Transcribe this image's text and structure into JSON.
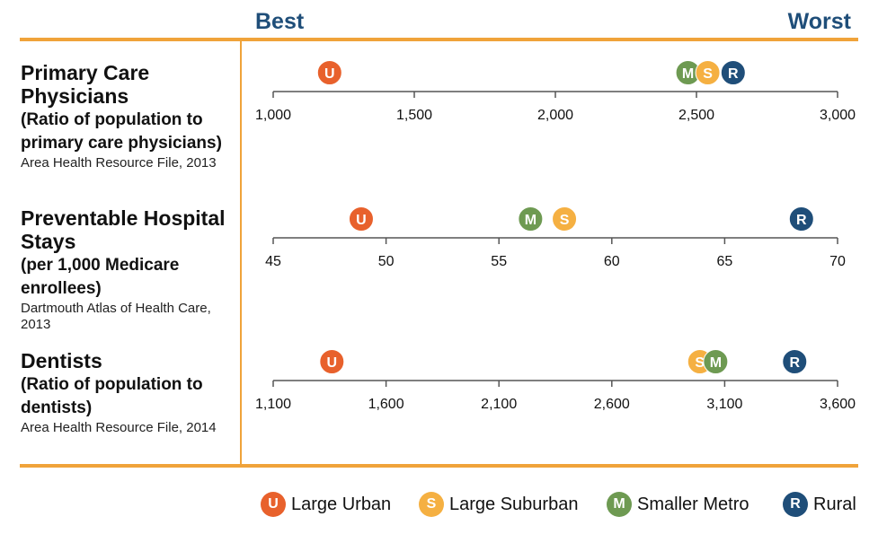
{
  "header": {
    "best": "Best",
    "worst": "Worst"
  },
  "colors": {
    "accent": "#f0a33a",
    "header_text": "#1f4e79",
    "U": "#e8612c",
    "S": "#f5b042",
    "M": "#6e9a52",
    "R": "#1f4e79"
  },
  "metrics": [
    {
      "title": "Primary Care Physicians",
      "subtitle": "(Ratio of population to primary care physicians)",
      "source": "Area Health Resource File, 2013"
    },
    {
      "title": "Preventable Hospital Stays",
      "subtitle": "(per 1,000 Medicare enrollees)",
      "source": "Dartmouth Atlas of Health Care, 2013"
    },
    {
      "title": "Dentists",
      "subtitle": "(Ratio of population to dentists)",
      "source": "Area Health Resource File, 2014"
    }
  ],
  "legend": [
    {
      "key": "U",
      "label": "Large Urban"
    },
    {
      "key": "S",
      "label": "Large Suburban"
    },
    {
      "key": "M",
      "label": "Smaller Metro"
    },
    {
      "key": "R",
      "label": "Rural"
    }
  ],
  "chart_data": [
    {
      "type": "scatter",
      "name": "primary-care",
      "xlim": [
        1000,
        3000
      ],
      "ticks": [
        1000,
        1500,
        2000,
        2500,
        3000
      ],
      "tick_labels": [
        "1,000",
        "1,500",
        "2,000",
        "2,500",
        "3,000"
      ],
      "points": [
        {
          "key": "U",
          "value": 1200
        },
        {
          "key": "M",
          "value": 2470
        },
        {
          "key": "S",
          "value": 2540
        },
        {
          "key": "R",
          "value": 2630
        }
      ]
    },
    {
      "type": "scatter",
      "name": "hospital-stays",
      "xlim": [
        45,
        70
      ],
      "ticks": [
        45,
        50,
        55,
        60,
        65,
        70
      ],
      "tick_labels": [
        "45",
        "50",
        "55",
        "60",
        "65",
        "70"
      ],
      "points": [
        {
          "key": "U",
          "value": 48.9
        },
        {
          "key": "M",
          "value": 56.4
        },
        {
          "key": "S",
          "value": 57.9
        },
        {
          "key": "R",
          "value": 68.4
        }
      ]
    },
    {
      "type": "scatter",
      "name": "dentists",
      "xlim": [
        1100,
        3600
      ],
      "ticks": [
        1100,
        1600,
        2100,
        2600,
        3100,
        3600
      ],
      "tick_labels": [
        "1,100",
        "1,600",
        "2,100",
        "2,600",
        "3,100",
        "3,600"
      ],
      "points": [
        {
          "key": "U",
          "value": 1360
        },
        {
          "key": "S",
          "value": 2990
        },
        {
          "key": "M",
          "value": 3060
        },
        {
          "key": "R",
          "value": 3410
        }
      ]
    }
  ]
}
